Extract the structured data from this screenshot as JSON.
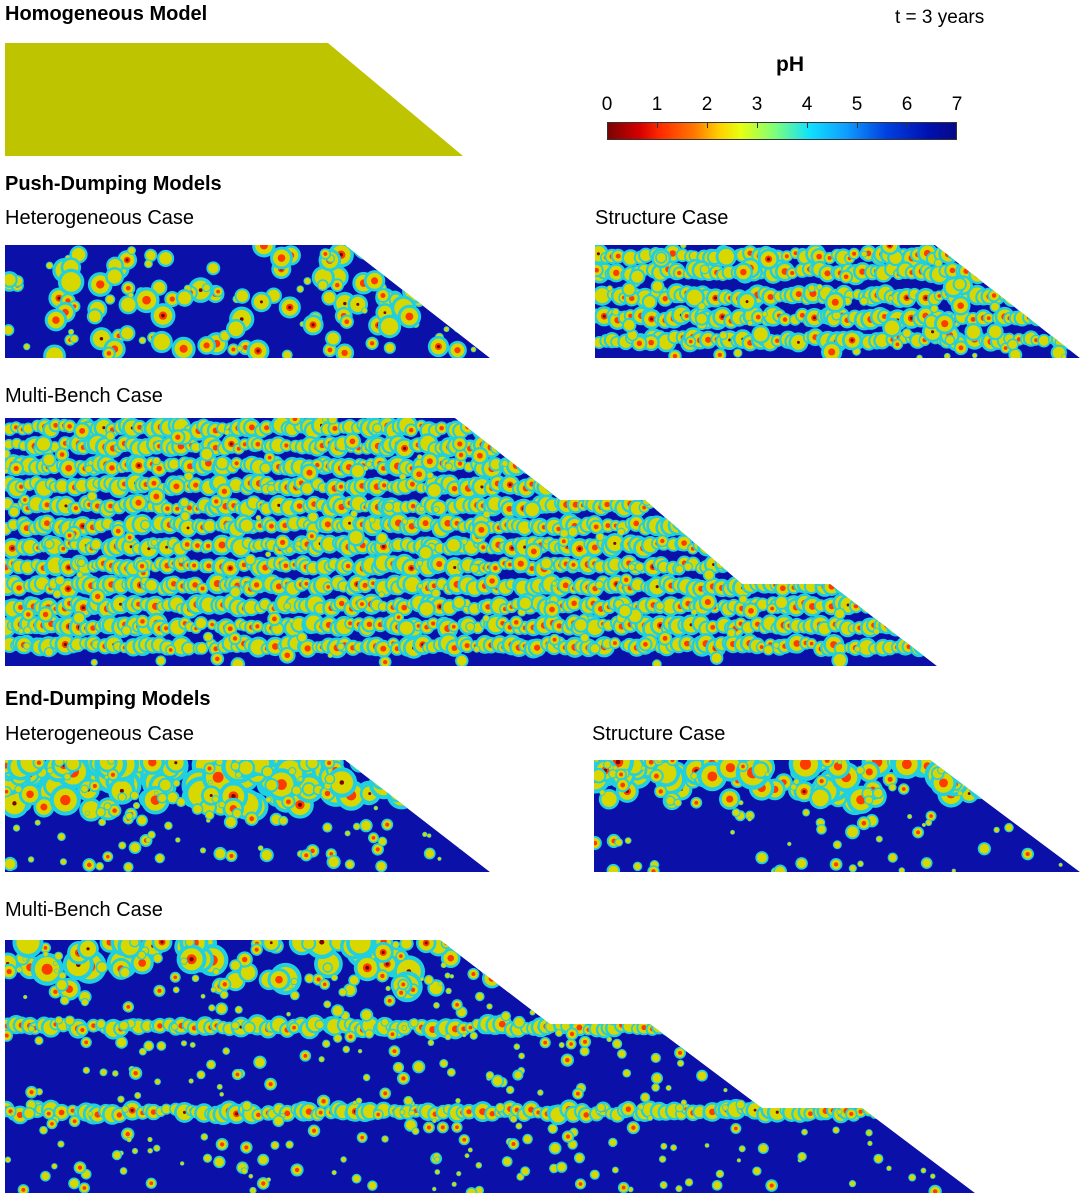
{
  "header": {
    "time_label": "t = 3 years"
  },
  "colorbar": {
    "title": "pH",
    "ticks": [
      "0",
      "1",
      "2",
      "3",
      "4",
      "5",
      "6",
      "7"
    ],
    "colors": {
      "low": "#7a0403",
      "mid_low": "#ff3a00",
      "mid": "#d8d800",
      "mid_high": "#20d0e0",
      "high": "#0a10a8"
    }
  },
  "sections": {
    "homogeneous": {
      "title": "Homogeneous Model",
      "fill": "#bfc400"
    },
    "push": {
      "title": "Push-Dumping Models",
      "hetero_label": "Heterogeneous Case",
      "structure_label": "Structure Case",
      "multibench_label": "Multi-Bench Case"
    },
    "end": {
      "title": "End-Dumping Models",
      "hetero_label": "Heterogeneous Case",
      "structure_label": "Structure Case",
      "multibench_label": "Multi-Bench Case"
    }
  }
}
